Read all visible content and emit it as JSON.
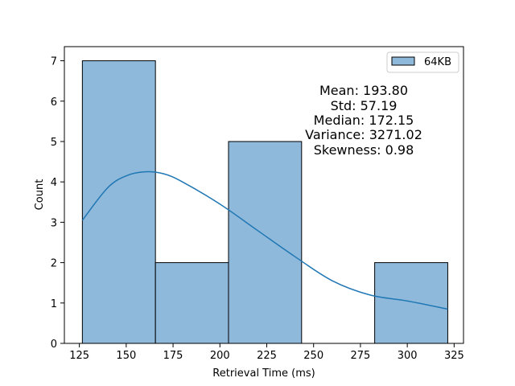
{
  "chart_data": {
    "type": "bar",
    "subtype": "histogram",
    "title": "",
    "xlabel": "Retrieval Time (ms)",
    "ylabel": "Count",
    "xlim": [
      117,
      330
    ],
    "ylim": [
      0,
      7.35
    ],
    "xticks": [
      125,
      150,
      175,
      200,
      225,
      250,
      275,
      300,
      325
    ],
    "yticks": [
      0,
      1,
      2,
      3,
      4,
      5,
      6,
      7
    ],
    "bins": [
      {
        "start": 126.6,
        "end": 165.6,
        "count": 7
      },
      {
        "start": 165.6,
        "end": 204.6,
        "count": 2
      },
      {
        "start": 204.6,
        "end": 243.6,
        "count": 5
      },
      {
        "start": 243.6,
        "end": 282.6,
        "count": 0
      },
      {
        "start": 282.6,
        "end": 321.6,
        "count": 2
      }
    ],
    "kde": {
      "x": [
        126.6,
        140,
        150,
        160,
        170,
        180,
        200,
        220,
        240,
        260,
        280,
        300,
        321.6
      ],
      "y": [
        3.05,
        3.85,
        4.15,
        4.25,
        4.2,
        4.0,
        3.45,
        2.8,
        2.15,
        1.55,
        1.2,
        1.05,
        0.85
      ]
    },
    "legend": {
      "position": "top-right",
      "entries": [
        "64KB"
      ]
    },
    "colors": {
      "bar_fill": "#8fb9db",
      "bar_edge": "#000000",
      "kde_line": "#1f77b4"
    },
    "annotations": {
      "position": "top-right",
      "lines": [
        "Mean: 193.80",
        "Std: 57.19",
        "Median: 172.15",
        "Variance: 3271.02",
        "Skewness: 0.98"
      ]
    }
  }
}
